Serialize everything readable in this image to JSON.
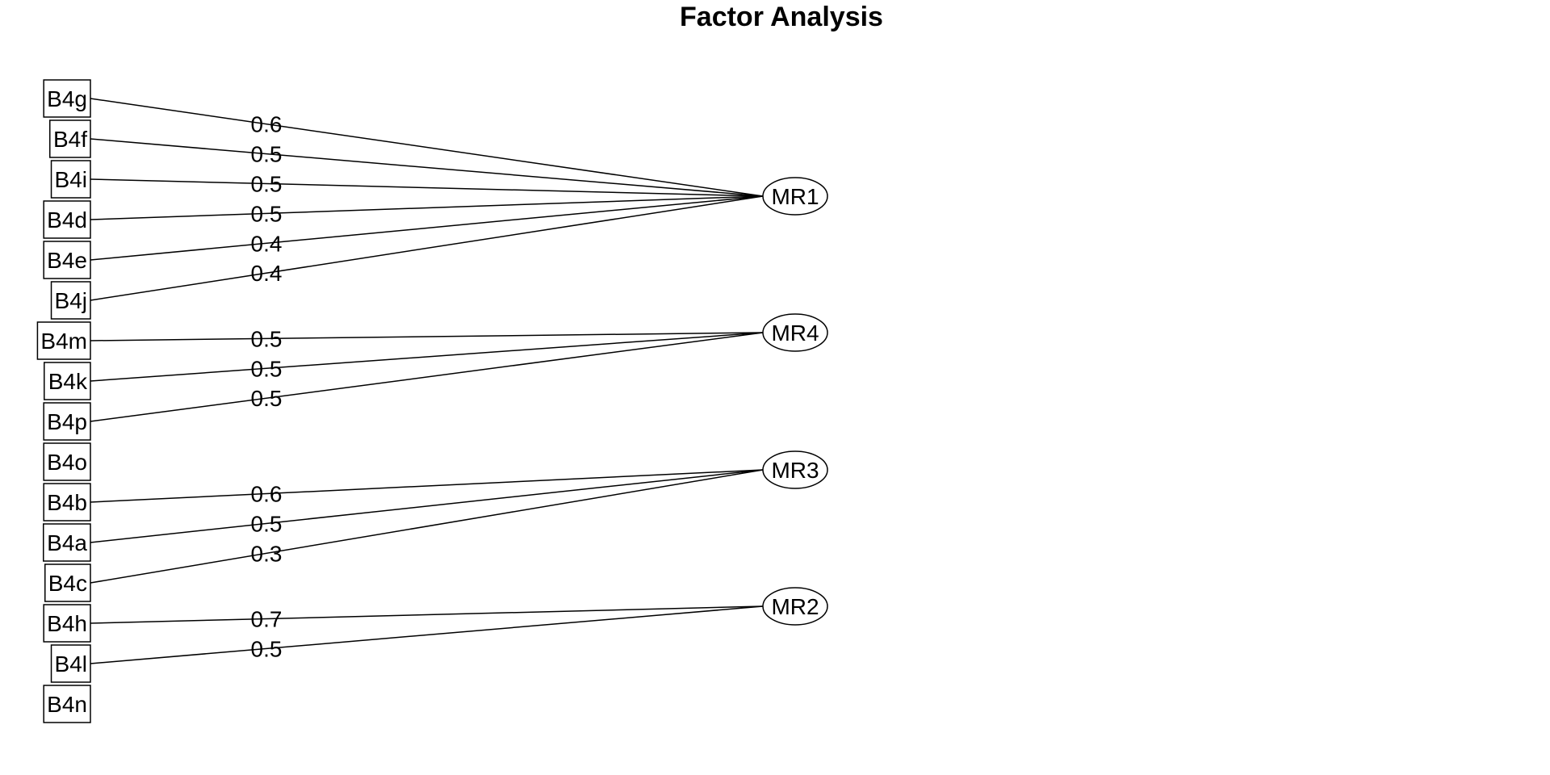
{
  "title": "Factor Analysis",
  "variables": [
    "B4g",
    "B4f",
    "B4i",
    "B4d",
    "B4e",
    "B4j",
    "B4m",
    "B4k",
    "B4p",
    "B4o",
    "B4b",
    "B4a",
    "B4c",
    "B4h",
    "B4l",
    "B4n"
  ],
  "factors": [
    "MR1",
    "MR4",
    "MR3",
    "MR2"
  ],
  "loadings": [
    {
      "factor": "MR1",
      "variable": "B4g",
      "label": "0.6"
    },
    {
      "factor": "MR1",
      "variable": "B4f",
      "label": "0.5"
    },
    {
      "factor": "MR1",
      "variable": "B4i",
      "label": "0.5"
    },
    {
      "factor": "MR1",
      "variable": "B4d",
      "label": "0.5"
    },
    {
      "factor": "MR1",
      "variable": "B4e",
      "label": "0.4"
    },
    {
      "factor": "MR1",
      "variable": "B4j",
      "label": "0.4"
    },
    {
      "factor": "MR4",
      "variable": "B4m",
      "label": "0.5"
    },
    {
      "factor": "MR4",
      "variable": "B4k",
      "label": "0.5"
    },
    {
      "factor": "MR4",
      "variable": "B4p",
      "label": "0.5"
    },
    {
      "factor": "MR3",
      "variable": "B4b",
      "label": "0.6"
    },
    {
      "factor": "MR3",
      "variable": "B4a",
      "label": "0.5"
    },
    {
      "factor": "MR3",
      "variable": "B4c",
      "label": "0.3"
    },
    {
      "factor": "MR2",
      "variable": "B4h",
      "label": "0.7"
    },
    {
      "factor": "MR2",
      "variable": "B4l",
      "label": "0.5"
    }
  ]
}
